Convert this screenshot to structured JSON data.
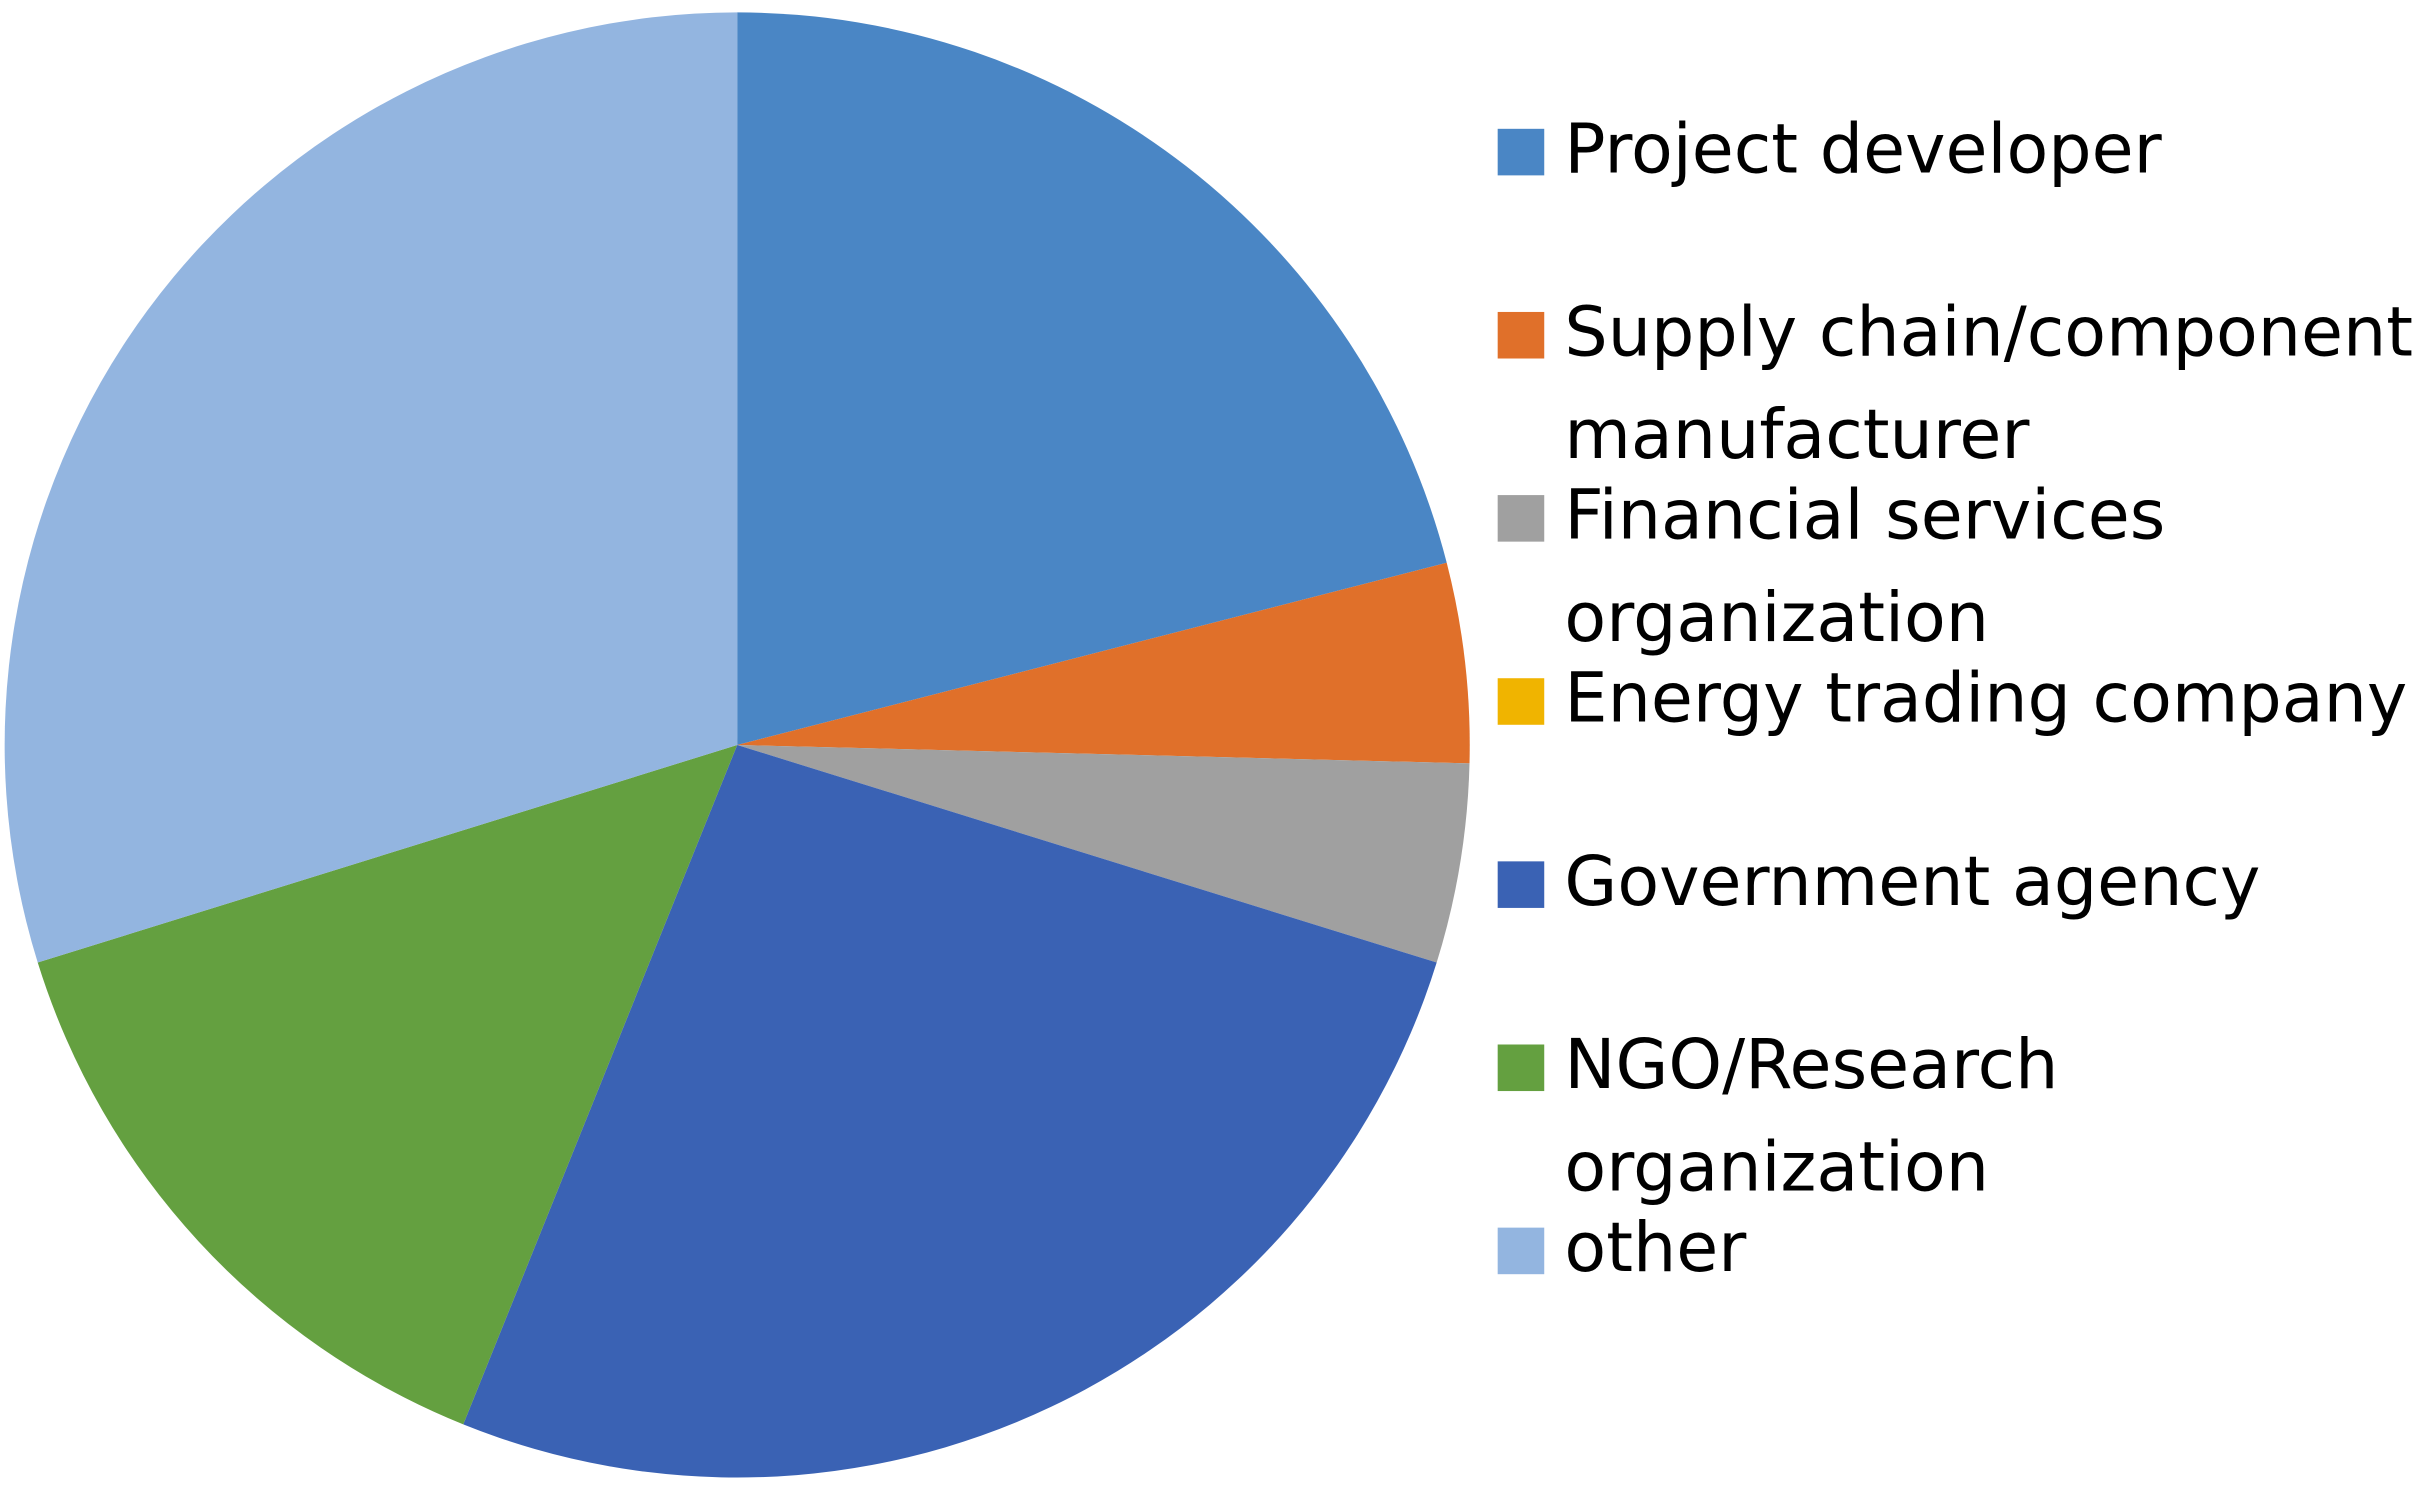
{
  "chart_data": {
    "type": "pie",
    "categories": [
      "Project developer",
      "Supply chain/component manufacturer",
      "Financial services organization",
      "Energy trading company",
      "Government agency",
      "NGO/Research organization",
      "other"
    ],
    "values": [
      21,
      4.4,
      4.4,
      0,
      26.3,
      14.1,
      29.8
    ],
    "colors": [
      "#4a86c5",
      "#e0702a",
      "#a0a0a0",
      "#f0b400",
      "#3a62b4",
      "#64a040",
      "#93b5e0"
    ],
    "legend": "right"
  }
}
